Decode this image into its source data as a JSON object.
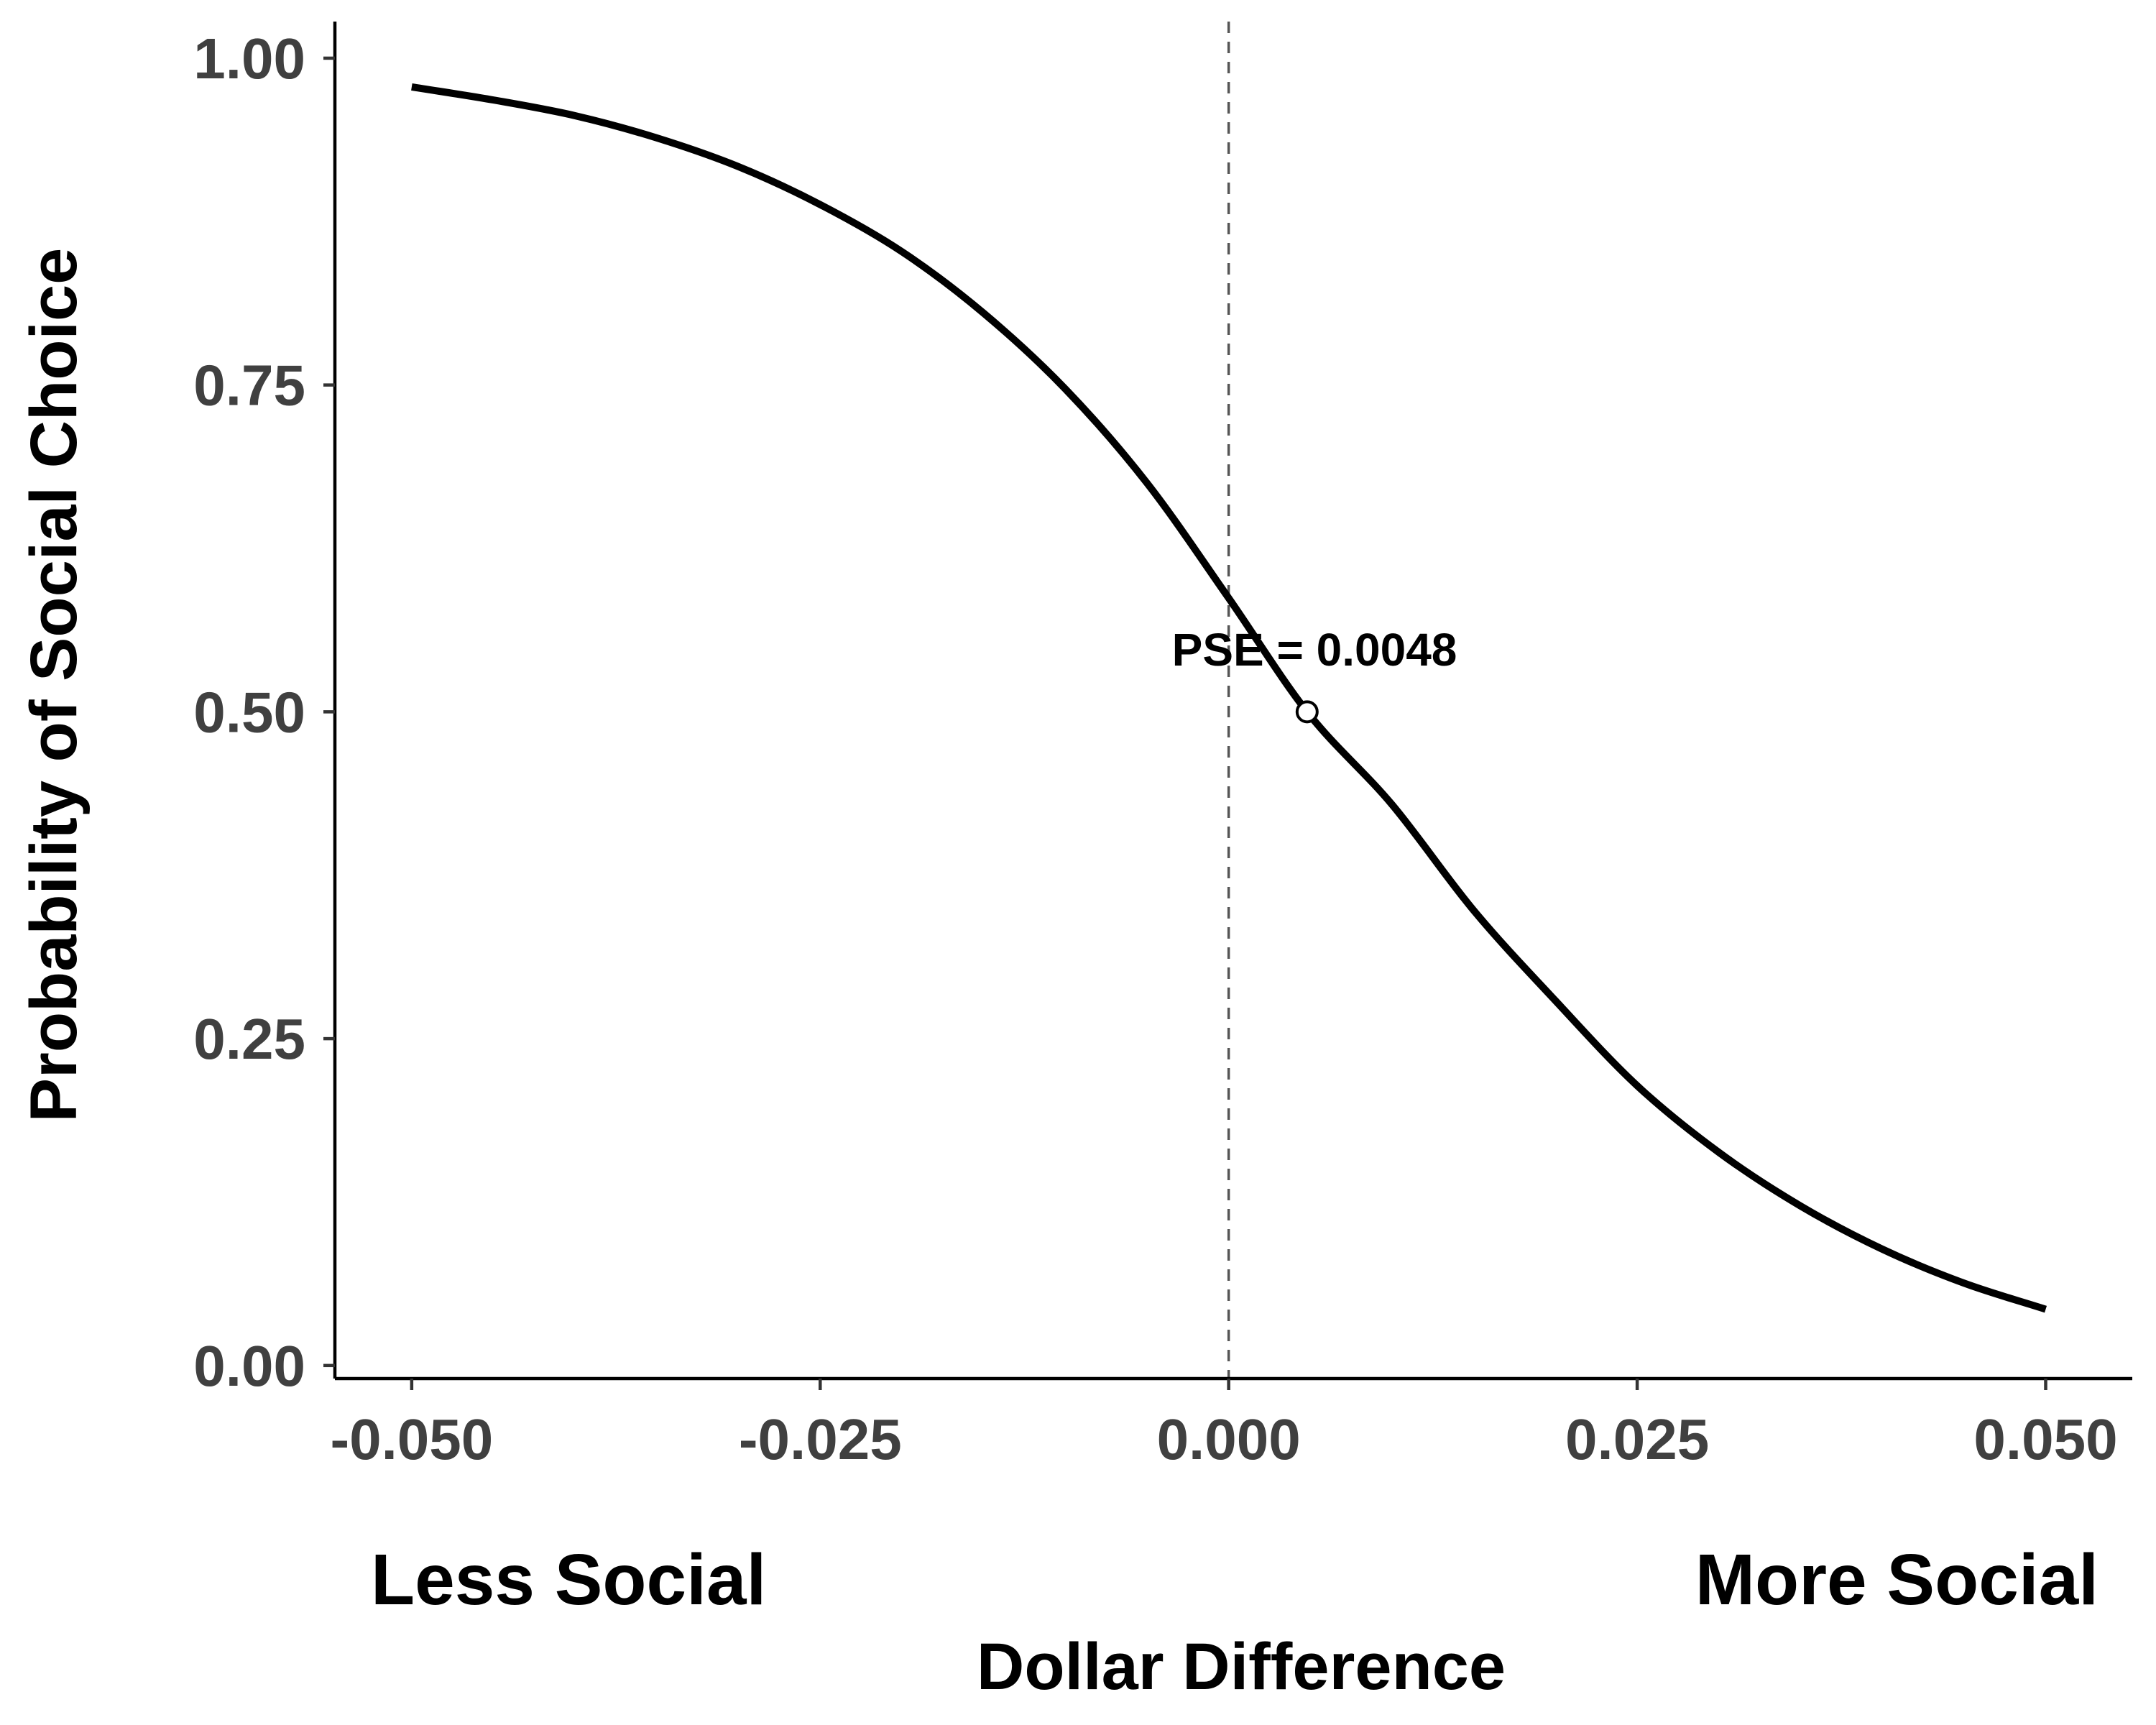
{
  "chart_data": {
    "type": "line",
    "title": "",
    "xlabel": "Dollar Difference",
    "ylabel": "Probability of Social Choice",
    "x_side_labels": {
      "left": "Less Social",
      "right": "More Social"
    },
    "xlim": [
      -0.0547,
      0.0553
    ],
    "ylim": [
      -0.01,
      1.028
    ],
    "x_ticks": [
      -0.05,
      -0.025,
      0,
      0.025,
      0.05
    ],
    "x_tick_labels": [
      "-0.050",
      "-0.025",
      "0.000",
      "0.025",
      "0.050"
    ],
    "y_ticks": [
      0,
      0.25,
      0.5,
      0.75,
      1
    ],
    "y_tick_labels": [
      "0.00",
      "0.25",
      "0.50",
      "0.75",
      "1.00"
    ],
    "grid": false,
    "vline": {
      "x": 0,
      "style": "dashed",
      "color": "#555555"
    },
    "series": [
      {
        "color": "#000000",
        "x": [
          -0.05,
          -0.045,
          -0.04,
          -0.035,
          -0.03,
          -0.025,
          -0.02,
          -0.015,
          -0.01,
          -0.005,
          0,
          0.0048,
          0.01,
          0.015,
          0.02,
          0.025,
          0.03,
          0.035,
          0.04,
          0.045,
          0.05
        ],
        "y": [
          0.978,
          0.968,
          0.956,
          0.939,
          0.917,
          0.888,
          0.852,
          0.805,
          0.747,
          0.675,
          0.587,
          0.5,
          0.429,
          0.348,
          0.279,
          0.214,
          0.163,
          0.122,
          0.089,
          0.063,
          0.043
        ]
      }
    ],
    "points": [
      {
        "x": 0.0048,
        "y": 0.5,
        "marker": "open-circle",
        "label": "PSE = 0.0048"
      }
    ]
  }
}
